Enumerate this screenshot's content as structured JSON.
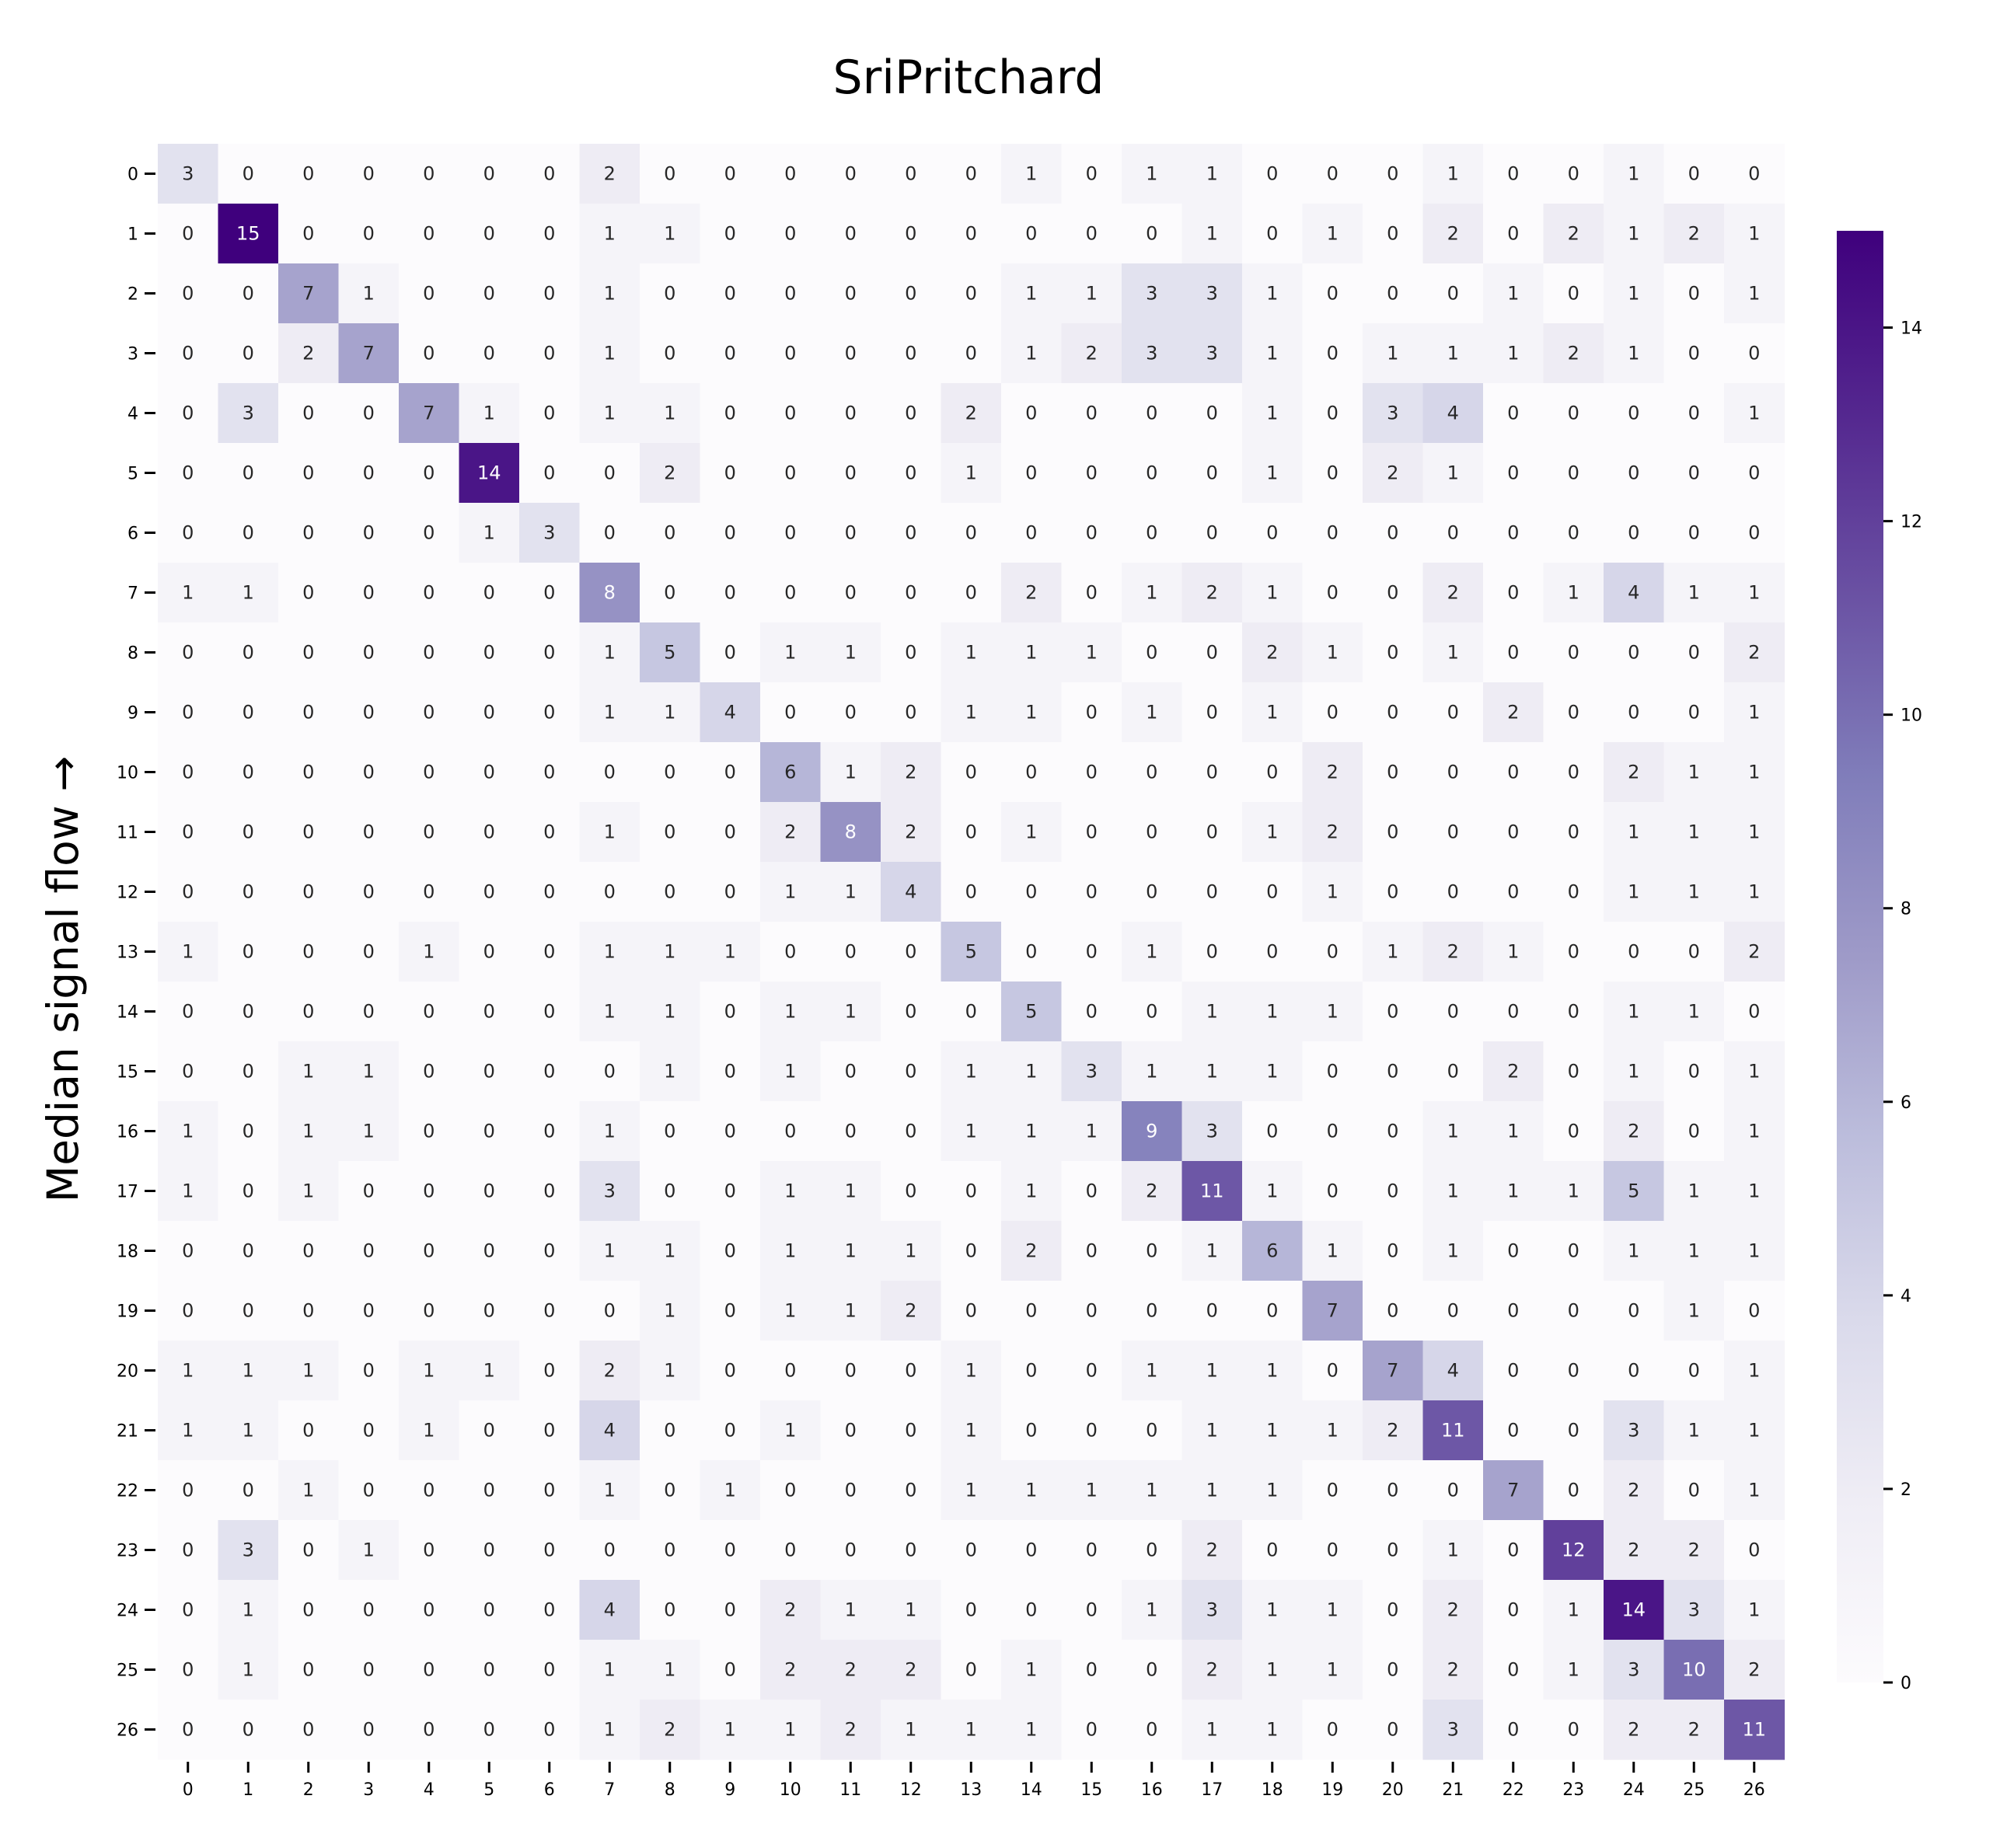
{
  "chart_data": {
    "type": "heatmap",
    "title": "SriPritchard",
    "xlabel": "",
    "ylabel": "Median signal flow →",
    "x_labels": [
      "0",
      "1",
      "2",
      "3",
      "4",
      "5",
      "6",
      "7",
      "8",
      "9",
      "10",
      "11",
      "12",
      "13",
      "14",
      "15",
      "16",
      "17",
      "18",
      "19",
      "20",
      "21",
      "22",
      "23",
      "24",
      "25",
      "26"
    ],
    "y_labels": [
      "0",
      "1",
      "2",
      "3",
      "4",
      "5",
      "6",
      "7",
      "8",
      "9",
      "10",
      "11",
      "12",
      "13",
      "14",
      "15",
      "16",
      "17",
      "18",
      "19",
      "20",
      "21",
      "22",
      "23",
      "24",
      "25",
      "26"
    ],
    "values": [
      [
        3,
        0,
        0,
        0,
        0,
        0,
        0,
        2,
        0,
        0,
        0,
        0,
        0,
        0,
        1,
        0,
        1,
        1,
        0,
        0,
        0,
        1,
        0,
        0,
        1,
        0,
        0
      ],
      [
        0,
        15,
        0,
        0,
        0,
        0,
        0,
        1,
        1,
        0,
        0,
        0,
        0,
        0,
        0,
        0,
        0,
        1,
        0,
        1,
        0,
        2,
        0,
        2,
        1,
        2,
        1
      ],
      [
        0,
        0,
        7,
        1,
        0,
        0,
        0,
        1,
        0,
        0,
        0,
        0,
        0,
        0,
        1,
        1,
        3,
        3,
        1,
        0,
        0,
        0,
        1,
        0,
        1,
        0,
        1
      ],
      [
        0,
        0,
        2,
        7,
        0,
        0,
        0,
        1,
        0,
        0,
        0,
        0,
        0,
        0,
        1,
        2,
        3,
        3,
        1,
        0,
        1,
        1,
        1,
        2,
        1,
        0,
        0
      ],
      [
        0,
        3,
        0,
        0,
        7,
        1,
        0,
        1,
        1,
        0,
        0,
        0,
        0,
        2,
        0,
        0,
        0,
        0,
        1,
        0,
        3,
        4,
        0,
        0,
        0,
        0,
        1
      ],
      [
        0,
        0,
        0,
        0,
        0,
        14,
        0,
        0,
        2,
        0,
        0,
        0,
        0,
        1,
        0,
        0,
        0,
        0,
        1,
        0,
        2,
        1,
        0,
        0,
        0,
        0,
        0
      ],
      [
        0,
        0,
        0,
        0,
        0,
        1,
        3,
        0,
        0,
        0,
        0,
        0,
        0,
        0,
        0,
        0,
        0,
        0,
        0,
        0,
        0,
        0,
        0,
        0,
        0,
        0,
        0
      ],
      [
        1,
        1,
        0,
        0,
        0,
        0,
        0,
        8,
        0,
        0,
        0,
        0,
        0,
        0,
        2,
        0,
        1,
        2,
        1,
        0,
        0,
        2,
        0,
        1,
        4,
        1,
        1
      ],
      [
        0,
        0,
        0,
        0,
        0,
        0,
        0,
        1,
        5,
        0,
        1,
        1,
        0,
        1,
        1,
        1,
        0,
        0,
        2,
        1,
        0,
        1,
        0,
        0,
        0,
        0,
        2
      ],
      [
        0,
        0,
        0,
        0,
        0,
        0,
        0,
        1,
        1,
        4,
        0,
        0,
        0,
        1,
        1,
        0,
        1,
        0,
        1,
        0,
        0,
        0,
        2,
        0,
        0,
        0,
        1
      ],
      [
        0,
        0,
        0,
        0,
        0,
        0,
        0,
        0,
        0,
        0,
        6,
        1,
        2,
        0,
        0,
        0,
        0,
        0,
        0,
        2,
        0,
        0,
        0,
        0,
        2,
        1,
        1
      ],
      [
        0,
        0,
        0,
        0,
        0,
        0,
        0,
        1,
        0,
        0,
        2,
        8,
        2,
        0,
        1,
        0,
        0,
        0,
        1,
        2,
        0,
        0,
        0,
        0,
        1,
        1,
        1
      ],
      [
        0,
        0,
        0,
        0,
        0,
        0,
        0,
        0,
        0,
        0,
        1,
        1,
        4,
        0,
        0,
        0,
        0,
        0,
        0,
        1,
        0,
        0,
        0,
        0,
        1,
        1,
        1
      ],
      [
        1,
        0,
        0,
        0,
        1,
        0,
        0,
        1,
        1,
        1,
        0,
        0,
        0,
        5,
        0,
        0,
        1,
        0,
        0,
        0,
        1,
        2,
        1,
        0,
        0,
        0,
        2
      ],
      [
        0,
        0,
        0,
        0,
        0,
        0,
        0,
        1,
        1,
        0,
        1,
        1,
        0,
        0,
        5,
        0,
        0,
        1,
        1,
        1,
        0,
        0,
        0,
        0,
        1,
        1,
        0
      ],
      [
        0,
        0,
        1,
        1,
        0,
        0,
        0,
        0,
        1,
        0,
        1,
        0,
        0,
        1,
        1,
        3,
        1,
        1,
        1,
        0,
        0,
        0,
        2,
        0,
        1,
        0,
        1
      ],
      [
        1,
        0,
        1,
        1,
        0,
        0,
        0,
        1,
        0,
        0,
        0,
        0,
        0,
        1,
        1,
        1,
        9,
        3,
        0,
        0,
        0,
        1,
        1,
        0,
        2,
        0,
        1
      ],
      [
        1,
        0,
        1,
        0,
        0,
        0,
        0,
        3,
        0,
        0,
        1,
        1,
        0,
        0,
        1,
        0,
        2,
        11,
        1,
        0,
        0,
        1,
        1,
        1,
        5,
        1,
        1
      ],
      [
        0,
        0,
        0,
        0,
        0,
        0,
        0,
        1,
        1,
        0,
        1,
        1,
        1,
        0,
        2,
        0,
        0,
        1,
        6,
        1,
        0,
        1,
        0,
        0,
        1,
        1,
        1
      ],
      [
        0,
        0,
        0,
        0,
        0,
        0,
        0,
        0,
        1,
        0,
        1,
        1,
        2,
        0,
        0,
        0,
        0,
        0,
        0,
        7,
        0,
        0,
        0,
        0,
        0,
        1,
        0
      ],
      [
        1,
        1,
        1,
        0,
        1,
        1,
        0,
        2,
        1,
        0,
        0,
        0,
        0,
        1,
        0,
        0,
        1,
        1,
        1,
        0,
        7,
        4,
        0,
        0,
        0,
        0,
        1
      ],
      [
        1,
        1,
        0,
        0,
        1,
        0,
        0,
        4,
        0,
        0,
        1,
        0,
        0,
        1,
        0,
        0,
        0,
        1,
        1,
        1,
        2,
        11,
        0,
        0,
        3,
        1,
        1
      ],
      [
        0,
        0,
        1,
        0,
        0,
        0,
        0,
        1,
        0,
        1,
        0,
        0,
        0,
        1,
        1,
        1,
        1,
        1,
        1,
        0,
        0,
        0,
        7,
        0,
        2,
        0,
        1
      ],
      [
        0,
        3,
        0,
        1,
        0,
        0,
        0,
        0,
        0,
        0,
        0,
        0,
        0,
        0,
        0,
        0,
        0,
        2,
        0,
        0,
        0,
        1,
        0,
        12,
        2,
        2,
        0
      ],
      [
        0,
        1,
        0,
        0,
        0,
        0,
        0,
        4,
        0,
        0,
        2,
        1,
        1,
        0,
        0,
        0,
        1,
        3,
        1,
        1,
        0,
        2,
        0,
        1,
        14,
        3,
        1
      ],
      [
        0,
        1,
        0,
        0,
        0,
        0,
        0,
        1,
        1,
        0,
        2,
        2,
        2,
        0,
        1,
        0,
        0,
        2,
        1,
        1,
        0,
        2,
        0,
        1,
        3,
        10,
        2
      ],
      [
        0,
        0,
        0,
        0,
        0,
        0,
        0,
        1,
        2,
        1,
        1,
        2,
        1,
        1,
        1,
        0,
        0,
        1,
        1,
        0,
        0,
        3,
        0,
        0,
        2,
        2,
        11
      ]
    ],
    "colorbar": {
      "min": 0,
      "max": 15,
      "ticks": [
        0,
        2,
        4,
        6,
        8,
        10,
        12,
        14
      ]
    },
    "colormap": "Purples",
    "colors": [
      "#fcfbfd",
      "#efedf5",
      "#dadaeb",
      "#bcbddc",
      "#9e9ac8",
      "#807dba",
      "#6a51a3",
      "#54278f",
      "#3f007d"
    ],
    "annotated": true,
    "grid": false
  }
}
